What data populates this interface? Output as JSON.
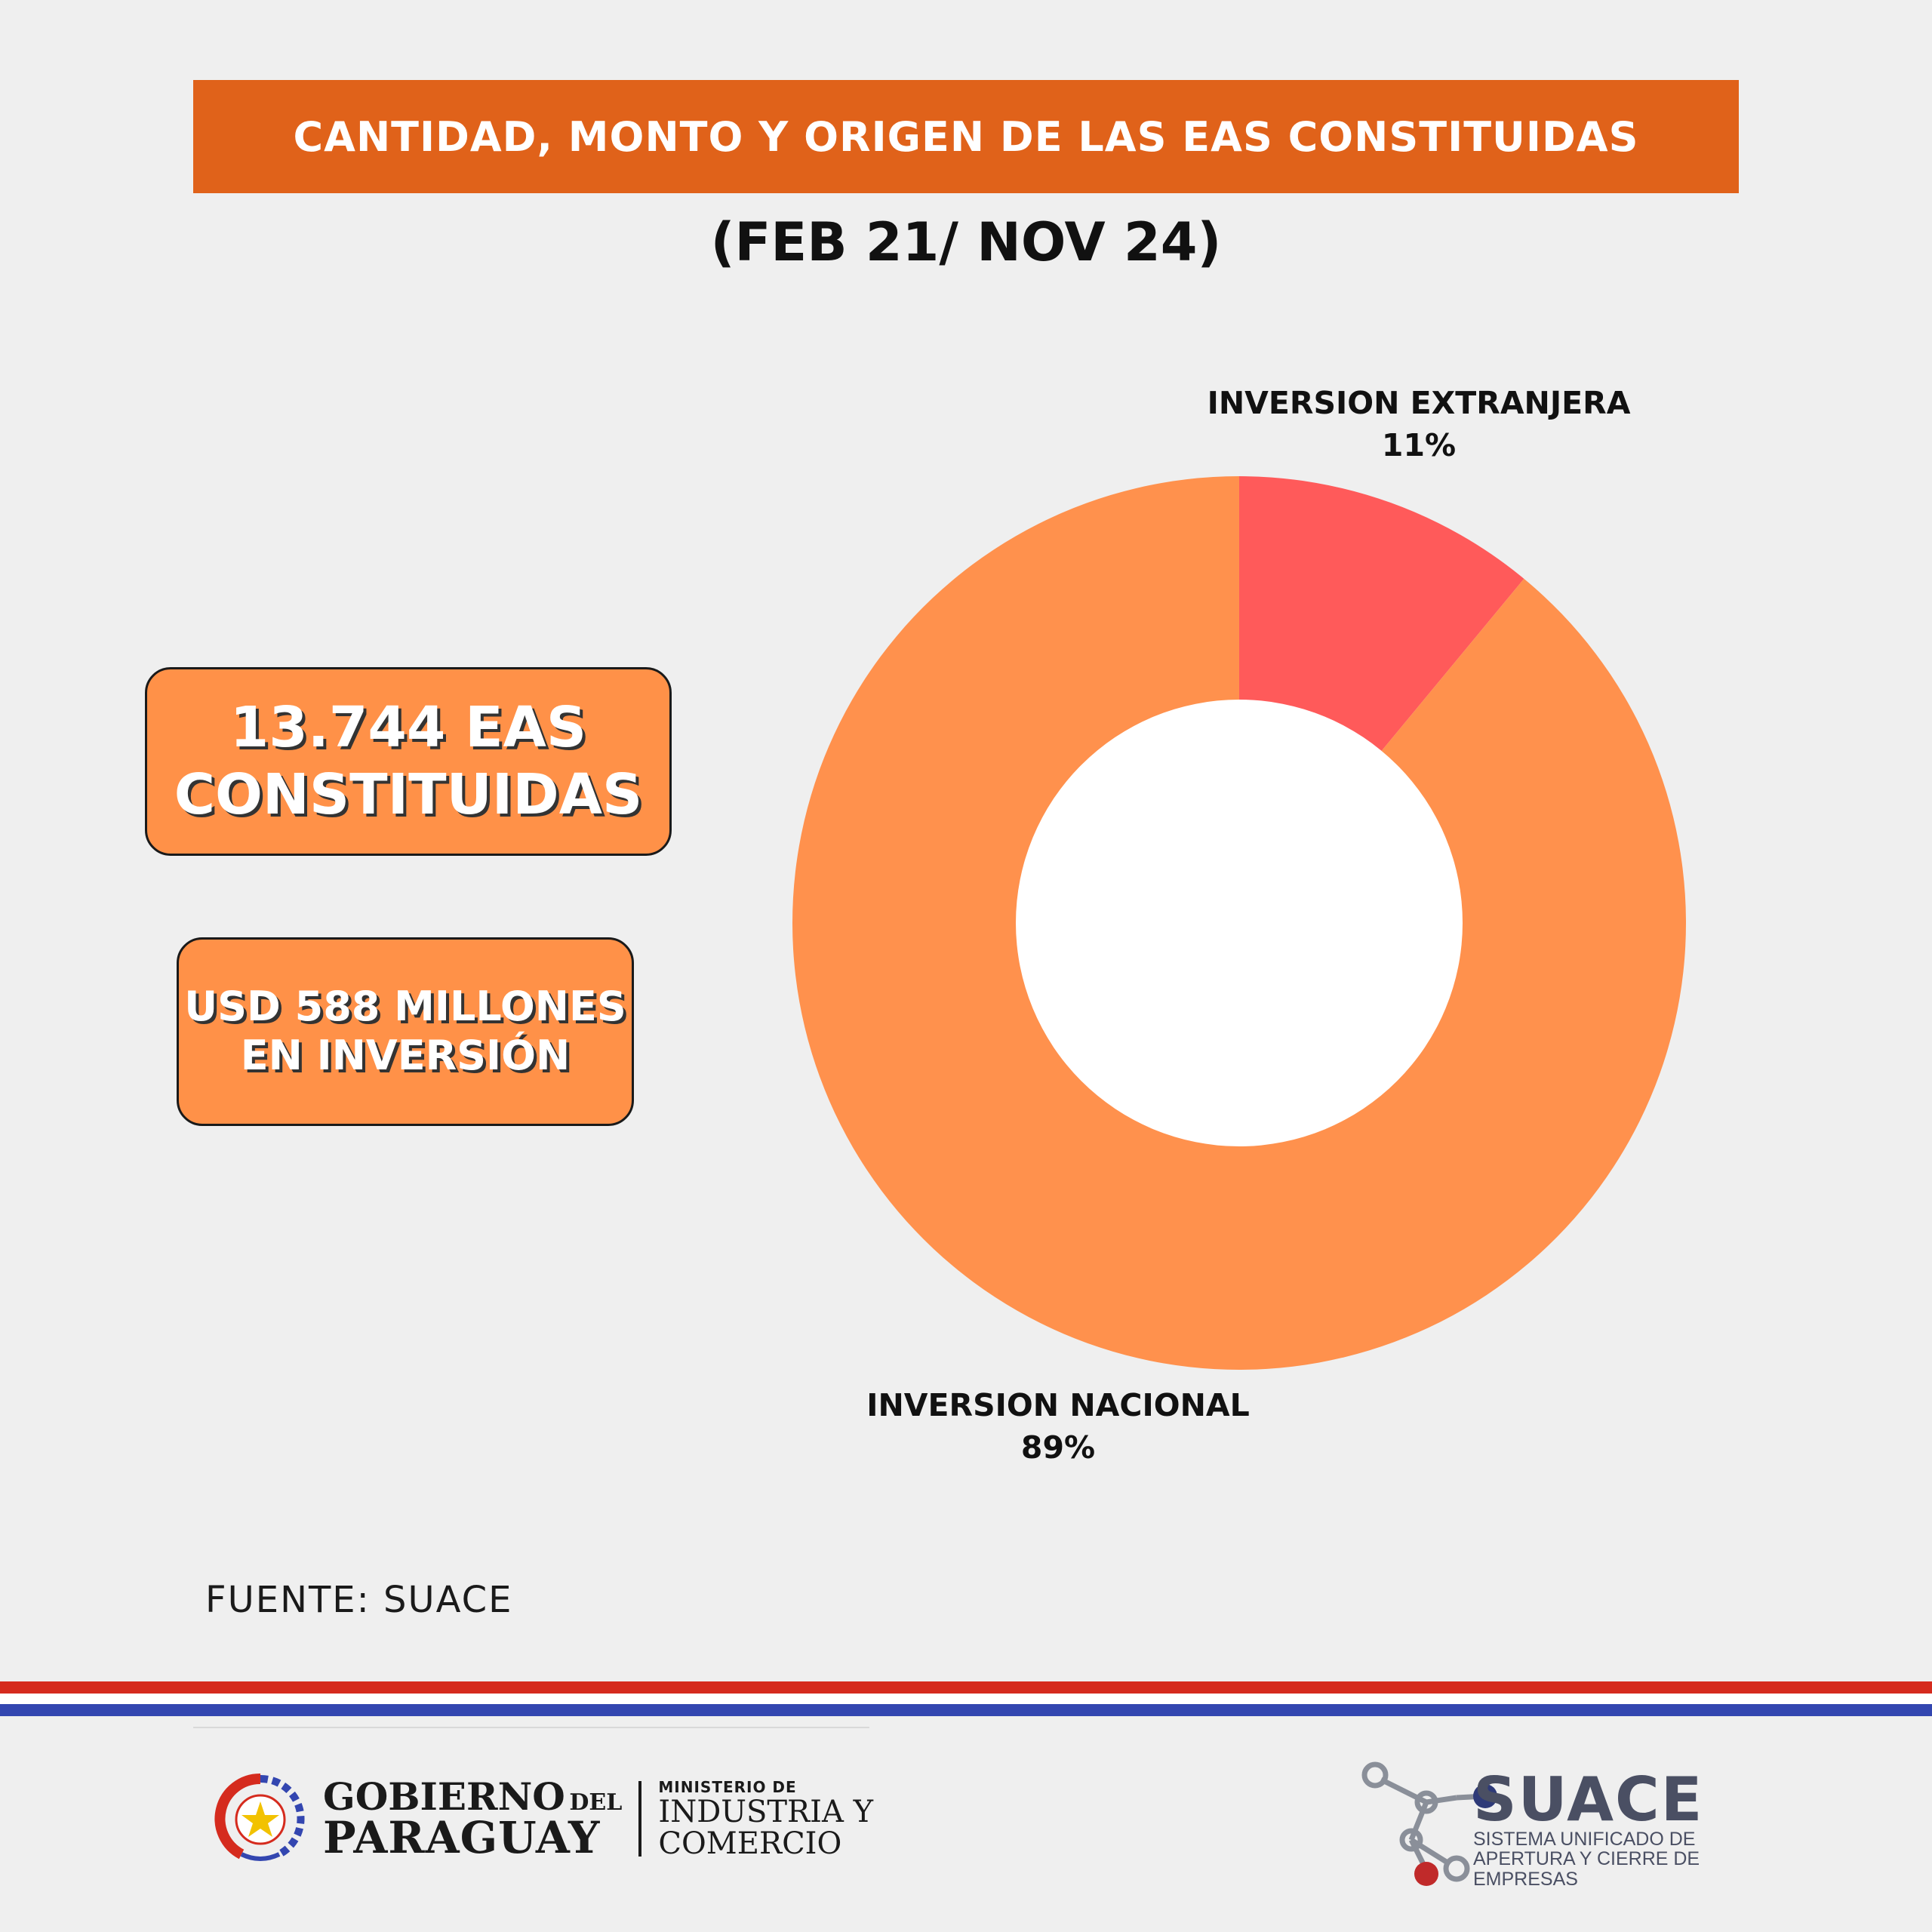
{
  "title": "CANTIDAD, MONTO Y ORIGEN DE LAS EAS CONSTITUIDAS",
  "subtitle": "(FEB 21/ NOV 24)",
  "stats": {
    "count": [
      "13.744 EAS",
      "CONSTITUIDAS"
    ],
    "amount": [
      "USD 588 MILLONES",
      "EN INVERSIÓN"
    ]
  },
  "chart_data": {
    "type": "pie",
    "donut": true,
    "slices": [
      {
        "label": "INVERSION EXTRANJERA",
        "percent_label": "11%",
        "value": 11,
        "color": "#ff5a5a"
      },
      {
        "label": "INVERSION NACIONAL",
        "percent_label": "89%",
        "value": 89,
        "color": "#ff914d"
      }
    ]
  },
  "source": "FUENTE: SUACE",
  "footer": {
    "gov": {
      "line1": "GOBIERNO",
      "del": "DEL",
      "line2": "PARAGUAY"
    },
    "ministry": [
      "MINISTERIO DE",
      "INDUSTRIA Y",
      "COMERCIO"
    ],
    "suace": {
      "name": "SUACE",
      "tagline": [
        "SISTEMA UNIFICADO DE",
        "APERTURA Y CIERRE DE",
        "EMPRESAS"
      ]
    }
  },
  "colors": {
    "title_bar": "#e0621a",
    "stat_box": "#ff9148",
    "flag_red": "#d52b1e",
    "flag_blue": "#3346b0"
  }
}
